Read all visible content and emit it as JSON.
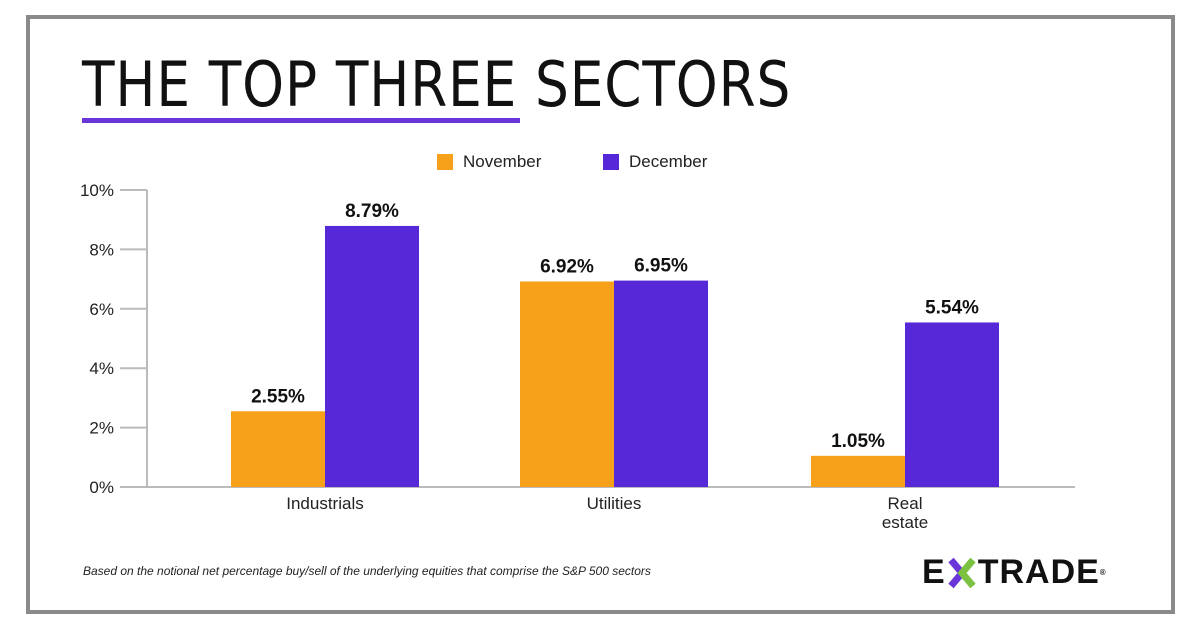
{
  "title": "THE TOP THREE SECTORS",
  "footnote": "Based on the notional net percentage buy/sell of the underlying equities that comprise the S&P 500 sectors",
  "logo_text": "E*TRADE",
  "colors": {
    "november": "#f7a11a",
    "december": "#5628d8",
    "accent": "#6a36d9"
  },
  "chart_data": {
    "type": "bar",
    "categories": [
      "Industrials",
      "Utilities",
      "Real estate"
    ],
    "category_lines": [
      [
        "Industrials"
      ],
      [
        "Utilities"
      ],
      [
        "Real",
        "estate"
      ]
    ],
    "series": [
      {
        "name": "November",
        "values": [
          2.55,
          6.92,
          1.05
        ],
        "labels": [
          "2.55%",
          "6.92%",
          "1.05%"
        ]
      },
      {
        "name": "December",
        "values": [
          8.79,
          6.95,
          5.54
        ],
        "labels": [
          "8.79%",
          "6.95%",
          "5.54%"
        ]
      }
    ],
    "ylim": [
      0,
      10
    ],
    "yticks": [
      "0%",
      "2%",
      "4%",
      "6%",
      "8%",
      "10%"
    ],
    "legend": "top-center",
    "grid": false
  }
}
